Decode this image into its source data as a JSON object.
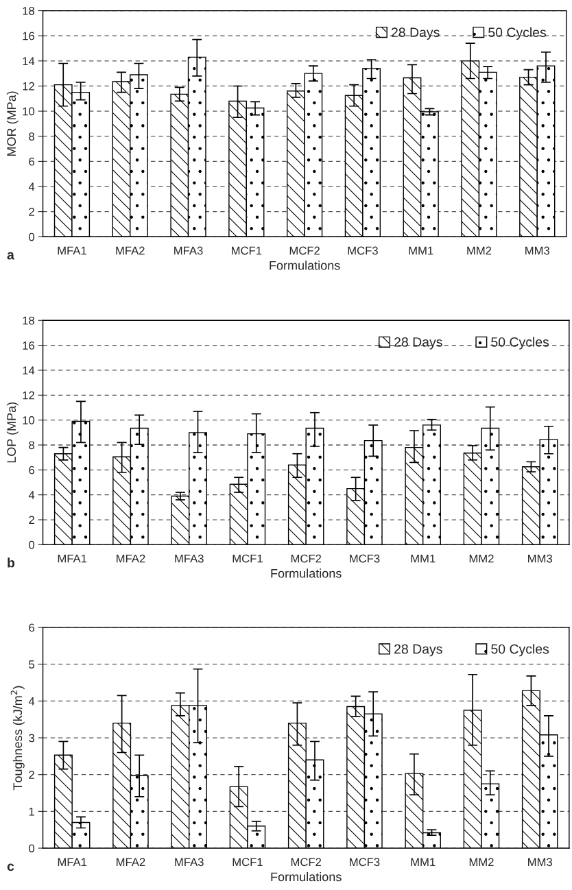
{
  "chart_data": [
    {
      "type": "bar",
      "xlabel": "Formulations",
      "ylabel": "MOR (MPa)",
      "annotations": [
        "a"
      ],
      "categories": [
        "MFA1",
        "MFA2",
        "MFA3",
        "MCF1",
        "MCF2",
        "MCF3",
        "MM1",
        "MM2",
        "MM3"
      ],
      "ylim": [
        0,
        18
      ],
      "yticks": [
        0,
        2,
        4,
        6,
        8,
        10,
        12,
        14,
        16,
        18
      ],
      "grid": "y",
      "legend": "top right",
      "series": [
        {
          "name": "28 Days",
          "color": "#ffffff",
          "values": [
            12.1,
            12.35,
            11.35,
            10.8,
            11.6,
            11.25,
            12.65,
            14.0,
            12.7
          ],
          "errors": [
            [
              10.4,
              13.8
            ],
            [
              11.5,
              13.1
            ],
            [
              10.8,
              11.9
            ],
            [
              9.5,
              12.0
            ],
            [
              11.1,
              12.2
            ],
            [
              10.4,
              12.1
            ],
            [
              11.4,
              13.7
            ],
            [
              12.6,
              15.4
            ],
            [
              12.1,
              13.3
            ]
          ]
        },
        {
          "name": "50 Cycles",
          "color": "#ffffff",
          "values": [
            11.5,
            12.9,
            14.3,
            10.25,
            13.0,
            13.4,
            9.95,
            13.1,
            13.6
          ],
          "errors": [
            [
              10.9,
              12.3
            ],
            [
              11.8,
              13.8
            ],
            [
              12.8,
              15.7
            ],
            [
              9.7,
              10.75
            ],
            [
              12.4,
              13.6
            ],
            [
              12.6,
              14.1
            ],
            [
              9.7,
              10.2
            ],
            [
              12.6,
              13.55
            ],
            [
              12.3,
              14.7
            ]
          ]
        }
      ]
    },
    {
      "type": "bar",
      "xlabel": "Formulations",
      "ylabel": "LOP (MPa)",
      "annotations": [
        "b"
      ],
      "categories": [
        "MFA1",
        "MFA2",
        "MFA3",
        "MCF1",
        "MCF2",
        "MCF3",
        "MM1",
        "MM2",
        "MM3"
      ],
      "ylim": [
        0,
        18
      ],
      "yticks": [
        0,
        2,
        4,
        6,
        8,
        10,
        12,
        14,
        16,
        18
      ],
      "grid": "y",
      "legend": "top right",
      "series": [
        {
          "name": "28 Days",
          "color": "#ffffff",
          "values": [
            7.3,
            7.05,
            3.9,
            4.85,
            6.4,
            4.5,
            7.8,
            7.35,
            6.25
          ],
          "errors": [
            [
              6.8,
              7.8
            ],
            [
              5.8,
              8.2
            ],
            [
              3.6,
              4.2
            ],
            [
              4.2,
              5.4
            ],
            [
              5.4,
              7.3
            ],
            [
              3.55,
              5.4
            ],
            [
              6.6,
              9.15
            ],
            [
              6.8,
              7.95
            ],
            [
              5.85,
              6.65
            ]
          ]
        },
        {
          "name": "50 Cycles",
          "color": "#ffffff",
          "values": [
            9.9,
            9.35,
            9.0,
            8.9,
            9.35,
            8.35,
            9.6,
            9.35,
            8.45
          ],
          "errors": [
            [
              8.2,
              11.5
            ],
            [
              8.05,
              10.4
            ],
            [
              7.4,
              10.7
            ],
            [
              7.4,
              10.5
            ],
            [
              7.9,
              10.6
            ],
            [
              7.1,
              9.6
            ],
            [
              9.2,
              10.05
            ],
            [
              7.6,
              11.05
            ],
            [
              7.3,
              9.5
            ]
          ]
        }
      ]
    },
    {
      "type": "bar",
      "xlabel": "Formulations",
      "ylabel": "Toughness (kJ/m$^{2}$)",
      "annotations": [
        "c"
      ],
      "categories": [
        "MFA1",
        "MFA2",
        "MFA3",
        "MCF1",
        "MCF2",
        "MCF3",
        "MM1",
        "MM2",
        "MM3"
      ],
      "ylim": [
        0,
        6
      ],
      "yticks": [
        0,
        1,
        2,
        3,
        4,
        5,
        6
      ],
      "grid": "y",
      "legend": "top right",
      "series": [
        {
          "name": "28 Days",
          "color": "#ffffff",
          "values": [
            2.53,
            3.4,
            3.88,
            1.67,
            3.4,
            3.85,
            2.03,
            3.75,
            4.28
          ],
          "errors": [
            [
              2.15,
              2.9
            ],
            [
              2.6,
              4.15
            ],
            [
              3.6,
              4.22
            ],
            [
              1.13,
              2.22
            ],
            [
              2.8,
              3.95
            ],
            [
              3.58,
              4.13
            ],
            [
              1.45,
              2.56
            ],
            [
              2.8,
              4.72
            ],
            [
              3.88,
              4.68
            ]
          ]
        },
        {
          "name": "50 Cycles",
          "color": "#ffffff",
          "values": [
            0.7,
            1.97,
            3.88,
            0.6,
            2.4,
            3.65,
            0.42,
            1.75,
            3.08
          ],
          "errors": [
            [
              0.55,
              0.85
            ],
            [
              1.4,
              2.53
            ],
            [
              2.87,
              4.87
            ],
            [
              0.47,
              0.73
            ],
            [
              1.85,
              2.9
            ],
            [
              3.05,
              4.25
            ],
            [
              0.35,
              0.5
            ],
            [
              1.45,
              2.1
            ],
            [
              2.5,
              3.6
            ]
          ]
        }
      ]
    }
  ]
}
